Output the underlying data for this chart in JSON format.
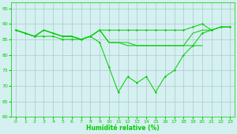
{
  "xlabel": "Humidité relative (%)",
  "background_color": "#d4f0f0",
  "grid_color": "#b0c8c8",
  "line_color": "#00cc00",
  "xlim": [
    -0.5,
    23.5
  ],
  "ylim": [
    60,
    97
  ],
  "yticks": [
    60,
    65,
    70,
    75,
    80,
    85,
    90,
    95
  ],
  "xticks": [
    0,
    1,
    2,
    3,
    4,
    5,
    6,
    7,
    8,
    9,
    10,
    11,
    12,
    13,
    14,
    15,
    16,
    17,
    18,
    19,
    20,
    21,
    22,
    23
  ],
  "line1_x": [
    0,
    1,
    2,
    3,
    4,
    5,
    6,
    7,
    8,
    9,
    10,
    11,
    12,
    13,
    14,
    15,
    16,
    17,
    18,
    19,
    20,
    21,
    22,
    23
  ],
  "line1_y": [
    88,
    87,
    86,
    88,
    87,
    86,
    86,
    85,
    86,
    88,
    88,
    88,
    88,
    88,
    88,
    88,
    88,
    88,
    88,
    89,
    90,
    88,
    89,
    89
  ],
  "line2_x": [
    0,
    1,
    2,
    3,
    4,
    5,
    6,
    7,
    8,
    9,
    10,
    11,
    12,
    13,
    14,
    15,
    16,
    17,
    18,
    19,
    20,
    21,
    22,
    23
  ],
  "line2_y": [
    88,
    87,
    86,
    88,
    87,
    86,
    86,
    85,
    86,
    88,
    84,
    84,
    84,
    83,
    83,
    83,
    83,
    83,
    83,
    87,
    88,
    88,
    89,
    89
  ],
  "line3_x": [
    0,
    1,
    2,
    3,
    4,
    5,
    6,
    7,
    8,
    9,
    10,
    11,
    12,
    13,
    14,
    15,
    16,
    17,
    18,
    19,
    20
  ],
  "line3_y": [
    88,
    87,
    86,
    88,
    87,
    86,
    86,
    85,
    86,
    88,
    84,
    84,
    83,
    83,
    83,
    83,
    83,
    83,
    83,
    83,
    83
  ],
  "line4_x": [
    0,
    1,
    2,
    3,
    4,
    5,
    6,
    7,
    8,
    9,
    10,
    11,
    12,
    13,
    14,
    15,
    16,
    17,
    18,
    19,
    20,
    21,
    22,
    23
  ],
  "line4_y": [
    88,
    87,
    86,
    86,
    86,
    85,
    85,
    85,
    86,
    84,
    76,
    68,
    73,
    71,
    73,
    68,
    73,
    75,
    80,
    83,
    87,
    88,
    89,
    89
  ]
}
